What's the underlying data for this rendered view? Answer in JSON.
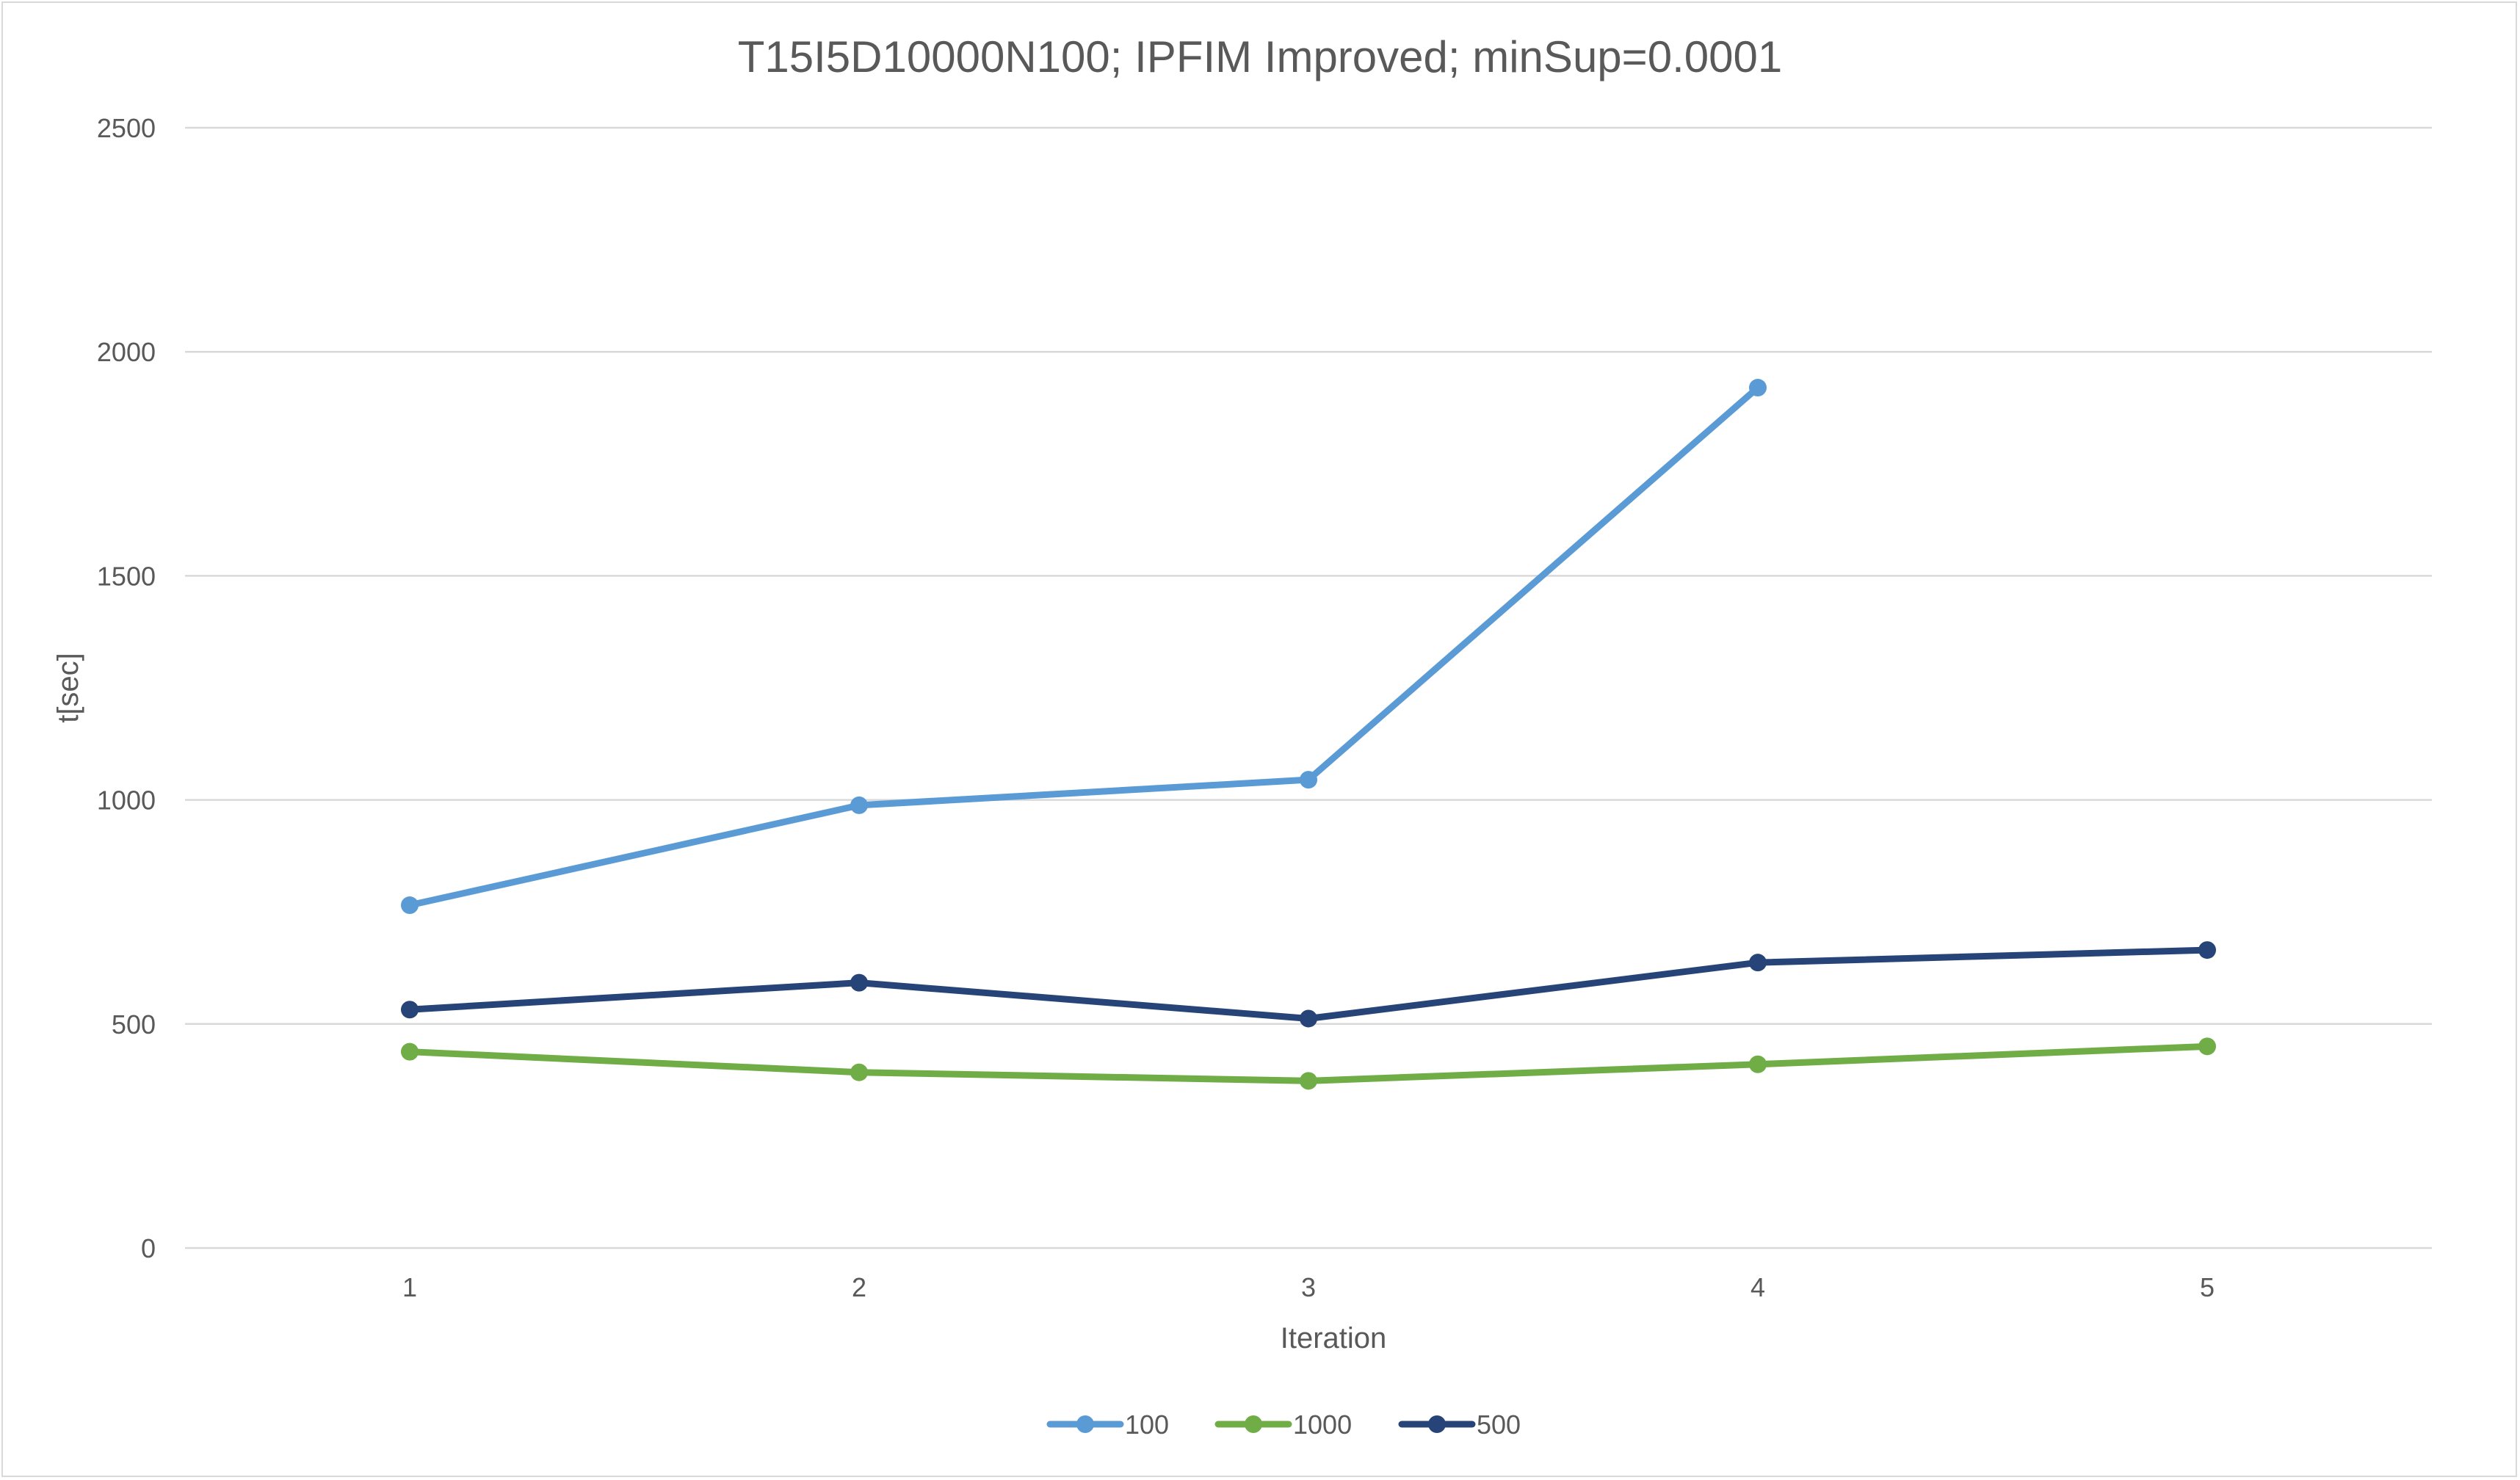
{
  "chart_data": {
    "type": "line",
    "title": "T15I5D10000N100; IPFIM Improved; minSup=0.0001",
    "xlabel": "Iteration",
    "ylabel": "t[sec]",
    "categories": [
      "1",
      "2",
      "3",
      "4",
      "5"
    ],
    "ylim": [
      0,
      2500
    ],
    "yticks": [
      "0",
      "500",
      "1000",
      "1500",
      "2000",
      "2500"
    ],
    "grid": true,
    "legend_position": "bottom",
    "series": [
      {
        "name": "100",
        "color": "#5b9bd5",
        "values": [
          765,
          988,
          1045,
          1920,
          null
        ]
      },
      {
        "name": "1000",
        "color": "#70ad47",
        "values": [
          438,
          392,
          373,
          410,
          450
        ]
      },
      {
        "name": "500",
        "color": "#264478",
        "values": [
          532,
          592,
          512,
          637,
          665
        ]
      }
    ]
  }
}
